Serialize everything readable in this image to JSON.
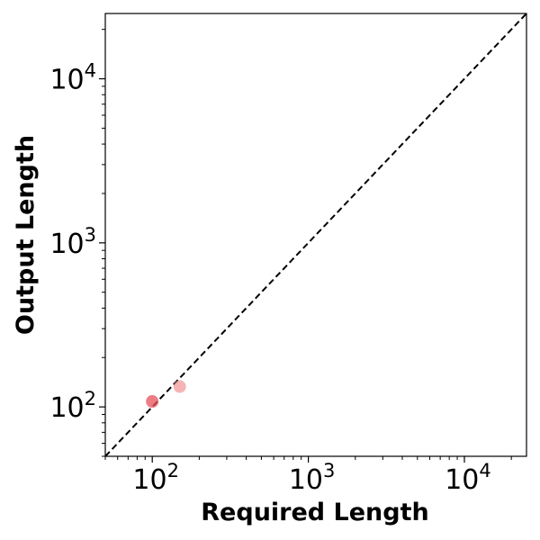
{
  "chart_data": {
    "type": "scatter",
    "title": "",
    "xlabel": "Required Length",
    "ylabel": "Output Length",
    "x_scale": "log",
    "y_scale": "log",
    "xlim": [
      50,
      25000
    ],
    "ylim": [
      50,
      25000
    ],
    "grid": false,
    "x_ticks": [
      {
        "value": 100,
        "base": "10",
        "exp": "2"
      },
      {
        "value": 1000,
        "base": "10",
        "exp": "3"
      },
      {
        "value": 10000,
        "base": "10",
        "exp": "4"
      }
    ],
    "y_ticks": [
      {
        "value": 100,
        "base": "10",
        "exp": "2"
      },
      {
        "value": 1000,
        "base": "10",
        "exp": "3"
      },
      {
        "value": 10000,
        "base": "10",
        "exp": "4"
      }
    ],
    "reference_line": {
      "style": "dashed",
      "color": "#000000",
      "description": "y = x"
    },
    "points": [
      {
        "x": 100,
        "y": 108,
        "color": "#e8505b",
        "opacity": 0.75
      },
      {
        "x": 150,
        "y": 133,
        "color": "#f08c8c",
        "opacity": 0.65
      }
    ]
  }
}
